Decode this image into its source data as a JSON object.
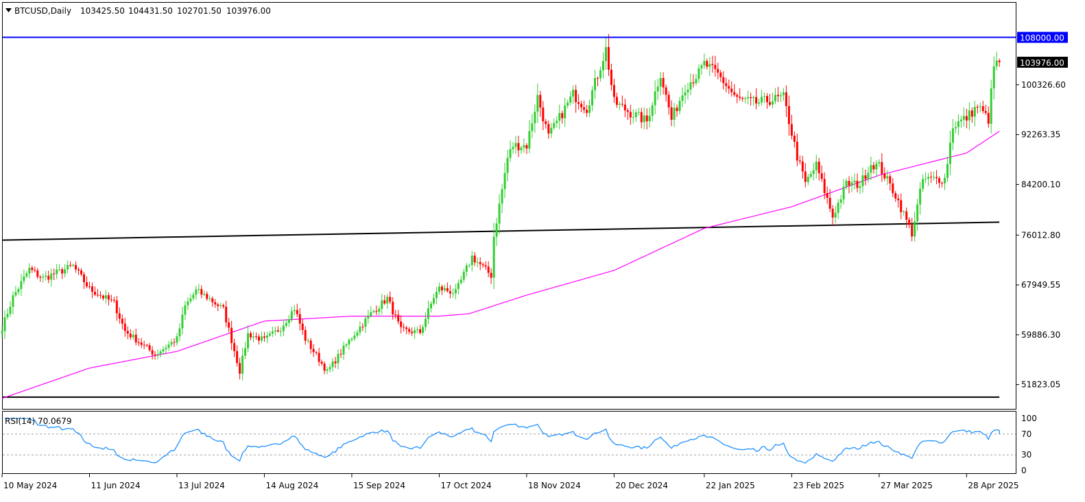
{
  "chart_data": {
    "type": "candlestick",
    "symbol_line": "BTCUSD,Daily",
    "ohlc_header": {
      "open": "103425.50",
      "high": "104431.50",
      "low": "102701.50",
      "close": "103976.00"
    },
    "price_axis_ticks": [
      "100326.60",
      "92263.35",
      "84200.10",
      "76012.80",
      "67949.55",
      "59886.30",
      "51823.05"
    ],
    "price_ylim": [
      47900,
      113600
    ],
    "horizontal_level": {
      "value": 108000,
      "label": "108000.00",
      "color": "#0000ff"
    },
    "last_price": {
      "value": 103976,
      "label": "103976.00"
    },
    "date_labels": [
      "10 May 2024",
      "11 Jun 2024",
      "13 Jul 2024",
      "14 Aug 2024",
      "15 Sep 2024",
      "17 Oct 2024",
      "18 Nov 2024",
      "20 Dec 2024",
      "22 Jan 2025",
      "23 Feb 2025",
      "27 Mar 2025",
      "28 Apr 2025"
    ],
    "trendlines": [
      {
        "name": "support-upper",
        "from": [
          "10 May 2024",
          75200
        ],
        "to": [
          "10 May 2025",
          78100
        ],
        "color": "#000000"
      },
      {
        "name": "support-lower",
        "from": [
          "10 May 2024",
          49800
        ],
        "to": [
          "10 May 2025",
          49800
        ],
        "color": "#000000"
      }
    ],
    "moving_average_color": "#ff00ff",
    "moving_average": [
      [
        "10 May 2024",
        49600
      ],
      [
        "11 Jun 2024",
        54500
      ],
      [
        "13 Jul 2024",
        57200
      ],
      [
        "14 Aug 2024",
        62100
      ],
      [
        "15 Sep 2024",
        62900
      ],
      [
        "17 Oct 2024",
        62900
      ],
      [
        "28 Oct 2024",
        63300
      ],
      [
        "18 Nov 2024",
        66300
      ],
      [
        "20 Dec 2024",
        70300
      ],
      [
        "22 Jan 2025",
        77100
      ],
      [
        "23 Feb 2025",
        80600
      ],
      [
        "27 Mar 2025",
        85700
      ],
      [
        "28 Apr 2025",
        89300
      ],
      [
        "10 May 2025",
        92800
      ]
    ],
    "close_path": [
      [
        "10 May 2024",
        61000
      ],
      [
        "14 May 2024",
        66000
      ],
      [
        "20 May 2024",
        70500
      ],
      [
        "25 May 2024",
        69000
      ],
      [
        "5 Jun 2024",
        71000
      ],
      [
        "11 Jun 2024",
        67300
      ],
      [
        "20 Jun 2024",
        65000
      ],
      [
        "24 Jun 2024",
        60500
      ],
      [
        "5 Jul 2024",
        56700
      ],
      [
        "13 Jul 2024",
        59200
      ],
      [
        "16 Jul 2024",
        64500
      ],
      [
        "20 Jul 2024",
        67000
      ],
      [
        "24 Jul 2024",
        66000
      ],
      [
        "30 Jul 2024",
        64000
      ],
      [
        "5 Aug 2024",
        54000
      ],
      [
        "8 Aug 2024",
        60000
      ],
      [
        "14 Aug 2024",
        59000
      ],
      [
        "20 Aug 2024",
        61000
      ],
      [
        "25 Aug 2024",
        64200
      ],
      [
        "29 Aug 2024",
        59200
      ],
      [
        "6 Sep 2024",
        53900
      ],
      [
        "15 Sep 2024",
        59500
      ],
      [
        "22 Sep 2024",
        63300
      ],
      [
        "28 Sep 2024",
        65800
      ],
      [
        "3 Oct 2024",
        60600
      ],
      [
        "10 Oct 2024",
        60300
      ],
      [
        "15 Oct 2024",
        66000
      ],
      [
        "17 Oct 2024",
        67400
      ],
      [
        "23 Oct 2024",
        66700
      ],
      [
        "29 Oct 2024",
        72500
      ],
      [
        "5 Nov 2024",
        69500
      ],
      [
        "6 Nov 2024",
        75800
      ],
      [
        "11 Nov 2024",
        88500
      ],
      [
        "13 Nov 2024",
        90500
      ],
      [
        "18 Nov 2024",
        90500
      ],
      [
        "22 Nov 2024",
        98400
      ],
      [
        "26 Nov 2024",
        91900
      ],
      [
        "5 Dec 2024",
        98800
      ],
      [
        "10 Dec 2024",
        96500
      ],
      [
        "17 Dec 2024",
        106100
      ],
      [
        "20 Dec 2024",
        97500
      ],
      [
        "26 Dec 2024",
        95800
      ],
      [
        "1 Jan 2025",
        94400
      ],
      [
        "6 Jan 2025",
        102200
      ],
      [
        "10 Jan 2025",
        94700
      ],
      [
        "15 Jan 2025",
        100000
      ],
      [
        "20 Jan 2025",
        102200
      ],
      [
        "22 Jan 2025",
        103700
      ],
      [
        "27 Jan 2025",
        102000
      ],
      [
        "3 Feb 2025",
        98000
      ],
      [
        "10 Feb 2025",
        97400
      ],
      [
        "20 Feb 2025",
        98300
      ],
      [
        "25 Feb 2025",
        88700
      ],
      [
        "28 Feb 2025",
        84400
      ],
      [
        "4 Mar 2025",
        87300
      ],
      [
        "10 Mar 2025",
        79000
      ],
      [
        "15 Mar 2025",
        84300
      ],
      [
        "20 Mar 2025",
        84200
      ],
      [
        "24 Mar 2025",
        87500
      ],
      [
        "27 Mar 2025",
        87200
      ],
      [
        "2 Apr 2025",
        82500
      ],
      [
        "8 Apr 2025",
        76300
      ],
      [
        "12 Apr 2025",
        85000
      ],
      [
        "20 Apr 2025",
        85100
      ],
      [
        "23 Apr 2025",
        93700
      ],
      [
        "28 Apr 2025",
        95000
      ],
      [
        "2 May 2025",
        96900
      ],
      [
        "6 May 2025",
        94700
      ],
      [
        "8 May 2025",
        103300
      ],
      [
        "10 May 2025",
        103976
      ]
    ],
    "rsi": {
      "label": "RSI(14) 70.0679",
      "period": 14,
      "last": 70.0679,
      "levels": [
        70,
        30
      ],
      "axis_ticks": [
        "100",
        "70",
        "30",
        "0"
      ],
      "color": "#1e90ff",
      "ylim": [
        0,
        100
      ]
    }
  }
}
